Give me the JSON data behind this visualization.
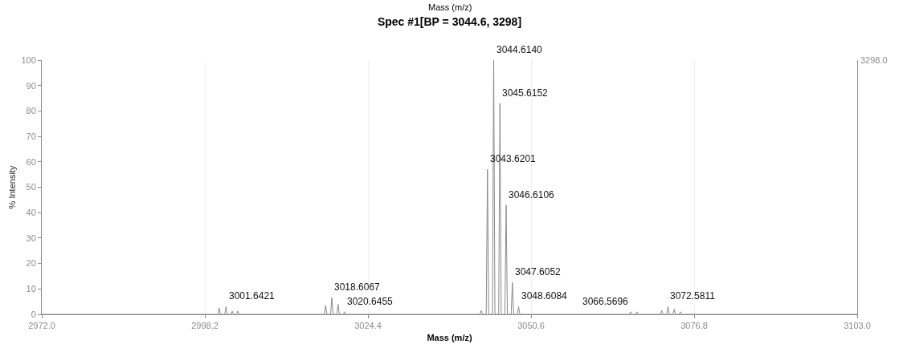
{
  "chart_data": {
    "type": "line",
    "title": "Spec #1[BP = 3044.6, 3298]",
    "xlabel": "Mass (m/z)",
    "ylabel": "% Intensity",
    "annotations": [
      "Mass (m/z)",
      "3298.0",
      {
        "text": "3001.6421",
        "x": 3001.6421,
        "y": 3
      },
      {
        "text": "3018.6067",
        "x": 3018.6067,
        "y": 6.5
      },
      {
        "text": "3020.6455",
        "x": 3020.6455,
        "y": 1
      },
      {
        "text": "3043.6201",
        "x": 3043.6201,
        "y": 57
      },
      {
        "text": "3044.6140",
        "x": 3044.614,
        "y": 100
      },
      {
        "text": "3045.6152",
        "x": 3045.6152,
        "y": 83
      },
      {
        "text": "3046.6106",
        "x": 3046.6106,
        "y": 43
      },
      {
        "text": "3047.6052",
        "x": 3047.6052,
        "y": 12.5
      },
      {
        "text": "3048.6084",
        "x": 3048.6084,
        "y": 3
      },
      {
        "text": "3066.5696",
        "x": 3066.5696,
        "y": 1
      },
      {
        "text": "3072.5811",
        "x": 3072.5811,
        "y": 3
      }
    ],
    "series": [
      {
        "color": "#8a8a8a",
        "x": [
          2972,
          3000.3,
          3000.5,
          3000.7,
          3001.4,
          3001.6,
          3001.8,
          3002.4,
          3002.6,
          3002.8,
          3003.3,
          3003.5,
          3003.7,
          3017.4,
          3017.6,
          3017.8,
          3018.4,
          3018.6,
          3018.8,
          3019.4,
          3019.6,
          3019.8,
          3020.5,
          3020.6,
          3020.8,
          3042.4,
          3042.6,
          3042.8,
          3043.4,
          3043.6,
          3043.8,
          3044.4,
          3044.6,
          3044.8,
          3045.4,
          3045.6,
          3045.8,
          3046.4,
          3046.6,
          3046.8,
          3047.4,
          3047.6,
          3047.8,
          3048.4,
          3048.6,
          3048.8,
          3066.4,
          3066.6,
          3066.8,
          3067.4,
          3067.6,
          3067.8,
          3071.4,
          3071.6,
          3071.8,
          3072.4,
          3072.6,
          3072.8,
          3073.4,
          3073.6,
          3073.8,
          3074.4,
          3074.6,
          3074.8,
          3103
        ],
        "values": [
          0,
          0,
          2.5,
          0,
          0,
          3,
          0,
          0,
          1.2,
          0,
          0,
          1.3,
          0,
          0,
          3.5,
          0,
          0,
          6.5,
          0,
          0,
          4,
          0,
          0,
          1,
          0,
          0,
          1.5,
          0,
          0,
          57,
          0,
          0,
          100,
          0,
          0,
          83,
          0,
          0,
          43,
          0,
          0,
          12.5,
          0,
          0,
          3,
          0,
          0,
          1,
          0,
          0,
          1,
          0,
          0,
          1.5,
          0,
          0,
          3,
          0,
          0,
          2,
          0,
          0,
          1,
          0,
          0
        ]
      }
    ],
    "xlim": [
      2972,
      3103
    ],
    "xticks": [
      {
        "value": 2972,
        "label": "2972.0"
      },
      2998.2,
      3024.4,
      3050.6,
      3076.8,
      {
        "value": 3103,
        "label": "3103.0"
      }
    ],
    "ylim": [
      0,
      100
    ],
    "yticks": [
      0,
      10,
      20,
      30,
      40,
      50,
      60,
      70,
      80,
      90,
      100
    ],
    "grid": "x",
    "marker": "none",
    "line_style": "solid"
  }
}
